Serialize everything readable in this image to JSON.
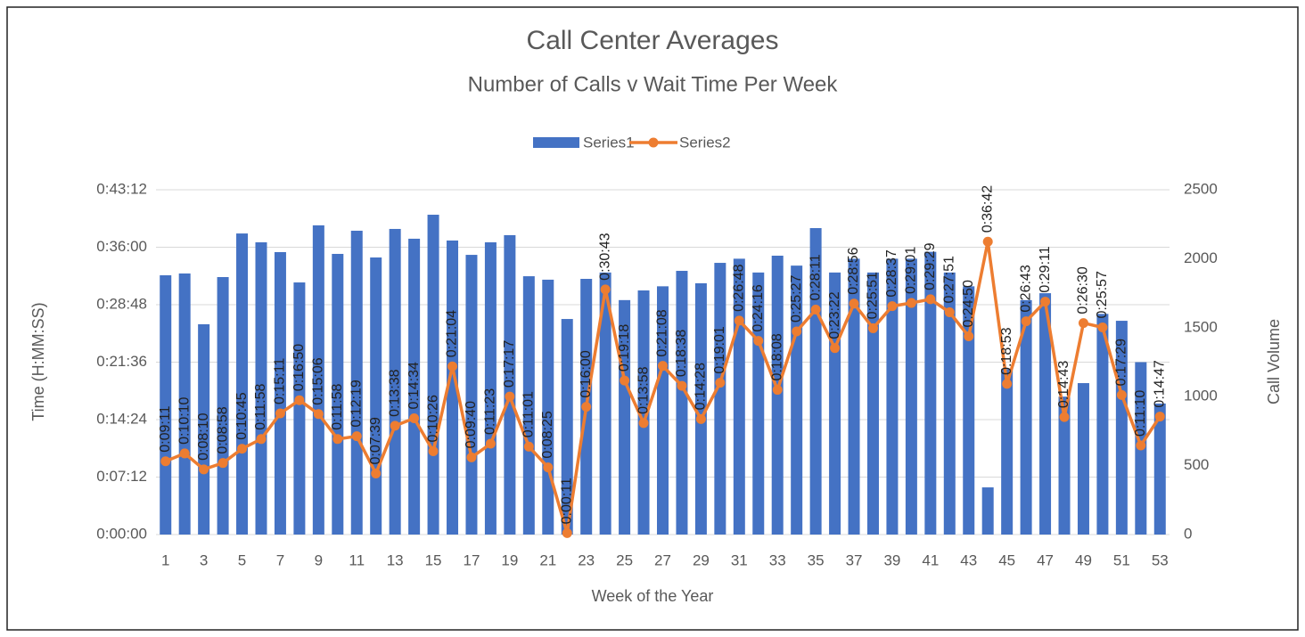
{
  "chart_data": {
    "type": "bar-line",
    "title": "Call Center Averages",
    "subtitle": "Number of Calls v Wait Time Per Week",
    "xlabel": "Week of the Year",
    "ylabel": "Time (H:MM:SS)",
    "y2label": "Call Volume",
    "legend": "top",
    "categories": [
      1,
      null,
      3,
      null,
      5,
      null,
      7,
      null,
      9,
      null,
      11,
      null,
      13,
      null,
      15,
      null,
      17,
      null,
      19,
      null,
      21,
      null,
      23,
      null,
      25,
      null,
      27,
      null,
      29,
      null,
      31,
      null,
      33,
      null,
      35,
      null,
      37,
      null,
      39,
      null,
      41,
      null,
      43,
      null,
      45,
      null,
      47,
      null,
      49,
      null,
      51,
      null,
      53
    ],
    "ylim": [
      0,
      2592
    ],
    "yticks": [
      {
        "value": 0,
        "label": "0:00:00"
      },
      {
        "value": 432,
        "label": "0:07:12"
      },
      {
        "value": 864,
        "label": "0:14:24"
      },
      {
        "value": 1296,
        "label": "0:21:36"
      },
      {
        "value": 1728,
        "label": "0:28:48"
      },
      {
        "value": 2160,
        "label": "0:36:00"
      },
      {
        "value": 2592,
        "label": "0:43:12"
      }
    ],
    "y2lim": [
      0,
      2500
    ],
    "y2ticks": [
      0,
      500,
      1000,
      1500,
      2000,
      2500
    ],
    "series": [
      {
        "name": "Series1",
        "color": "#4472c4",
        "axis": "y2",
        "type": "bar",
        "values": [
          1880,
          1893,
          1525,
          1867,
          2183,
          2119,
          2048,
          1828,
          2242,
          2035,
          2203,
          2009,
          2216,
          2145,
          2319,
          2132,
          2028,
          2119,
          2171,
          1873,
          1848,
          1563,
          1854,
          1900,
          1700,
          1770,
          1800,
          1912,
          1822,
          1970,
          2000,
          1900,
          2022,
          1950,
          2222,
          1900,
          2000,
          1900,
          2000,
          2000,
          2050,
          1900,
          1800,
          342,
          1200,
          1700,
          1750,
          1000,
          1098,
          1600,
          1550,
          1250,
          950
        ]
      },
      {
        "name": "Series2",
        "color": "#ed7d31",
        "type": "line",
        "values": [
          551,
          610,
          490,
          538,
          645,
          718,
          911,
          1010,
          906,
          718,
          739,
          459,
          818,
          874,
          626,
          1264,
          580,
          683,
          1037,
          661,
          505,
          11,
          960,
          1843,
          1158,
          838,
          1268,
          1118,
          868,
          1141,
          1608,
          1456,
          1088,
          1527,
          1691,
          1402,
          1736,
          1551,
          1717,
          1741,
          1769,
          1671,
          1490,
          2202,
          1133,
          1603,
          1751,
          883,
          1590,
          1557,
          1049,
          670,
          887
        ],
        "value_labels": [
          "0:09:11",
          "0:10:10",
          "0:08:10",
          "0:08:58",
          "0:10:45",
          "0:11:58",
          "0:15:11",
          "0:16:50",
          "0:15:06",
          "0:11:58",
          "0:12:19",
          "0:07:39",
          "0:13:38",
          "0:14:34",
          "0:10:26",
          "0:21:04",
          "0:09:40",
          "0:11:23",
          "0:17:17",
          "0:11:01",
          "0:08:25",
          "0:00:11",
          "0:16:00",
          "0:30:43",
          "0:19:18",
          "0:13:58",
          "0:21:08",
          "0:18:38",
          "0:14:28",
          "0:19:01",
          "0:26:48",
          "0:24:16",
          "0:18:08",
          "0:25:27",
          "0:28:11",
          "0:23:22",
          "0:28:56",
          "0:25:51",
          "0:28:37",
          "0:29:01",
          "0:29:29",
          "0:27:51",
          "0:24:50",
          "0:36:42",
          "0:18:53",
          "0:26:43",
          "0:29:11",
          "0:14:43",
          "0:26:30",
          "0:25:57",
          "0:17:29",
          "0:11:10",
          "0:14:47"
        ]
      }
    ]
  }
}
